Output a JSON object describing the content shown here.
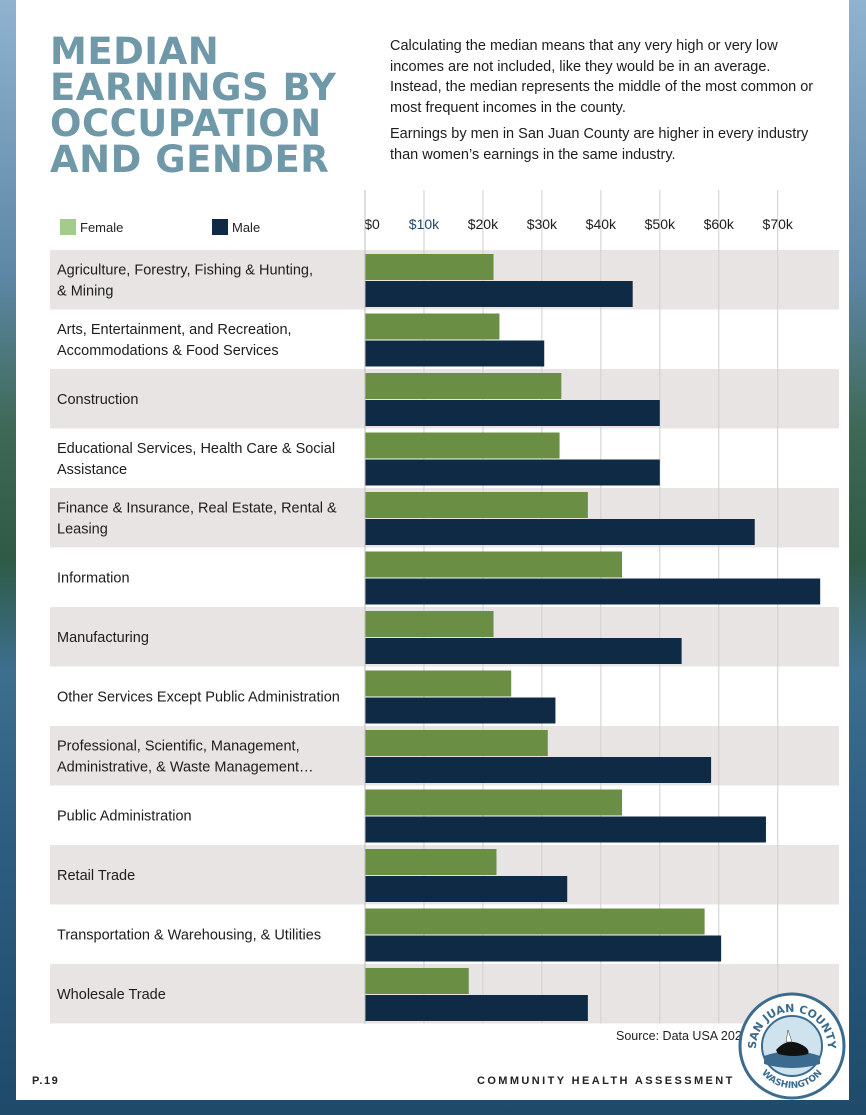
{
  "header": {
    "title": "MEDIAN EARNINGS BY OCCUPATION AND GENDER",
    "intro_p1": "Calculating the median means that any very high or very low incomes are not included, like they would be in an average. Instead, the median represents the middle of the most common or most frequent incomes in the county.",
    "intro_p2": "Earnings by men in San Juan County are higher in every industry than women’s earnings in the same industry."
  },
  "legend": {
    "female_label": "Female",
    "male_label": "Male"
  },
  "colors": {
    "female": "#6a8f44",
    "male": "#0f2a45",
    "band": "#e8e4e4",
    "title": "#6f98a8"
  },
  "chart_data": {
    "type": "bar",
    "orientation": "horizontal",
    "xlim": [
      0,
      77000
    ],
    "tick_values": [
      0,
      10000,
      20000,
      30000,
      40000,
      50000,
      60000,
      70000
    ],
    "tick_labels": [
      "$0",
      "$10k",
      "$20k",
      "$30k",
      "$40k",
      "$50k",
      "$60k",
      "$70k"
    ],
    "categories": [
      "Agriculture, Forestry, Fishing & Hunting, & Mining",
      "Arts, Entertainment, and Recreation, Accommodations & Food Services",
      "Construction",
      "Educational Services, Health Care & Social Assistance",
      "Finance & Insurance, Real Estate, Rental & Leasing",
      "Information",
      "Manufacturing",
      "Other Services Except Public Administration",
      "Professional, Scientific, Management, Administrative, & Waste Management…",
      "Public Administration",
      "Retail Trade",
      "Transportation & Warehousing, & Utilities",
      "Wholesale Trade"
    ],
    "category_lines": [
      [
        "Agriculture, Forestry, Fishing & Hunting,",
        "& Mining"
      ],
      [
        "Arts, Entertainment, and Recreation,",
        "Accommodations & Food Services"
      ],
      [
        "Construction"
      ],
      [
        "Educational Services, Health Care & Social",
        "Assistance"
      ],
      [
        "Finance & Insurance, Real Estate, Rental &",
        "Leasing"
      ],
      [
        "Information"
      ],
      [
        "Manufacturing"
      ],
      [
        "Other Services Except Public Administration"
      ],
      [
        "Professional, Scientific, Management,",
        "Administrative, & Waste Management…"
      ],
      [
        "Public Administration"
      ],
      [
        "Retail Trade"
      ],
      [
        "Transportation & Warehousing, & Utilities"
      ],
      [
        "Wholesale Trade"
      ]
    ],
    "series": [
      {
        "name": "Female",
        "values": [
          21800,
          22800,
          33300,
          33000,
          37800,
          43600,
          21800,
          24800,
          31000,
          43600,
          22300,
          57600,
          17600
        ]
      },
      {
        "name": "Male",
        "values": [
          45400,
          30400,
          50000,
          50000,
          66100,
          77200,
          53700,
          32300,
          58700,
          68000,
          34300,
          60400,
          37800
        ]
      }
    ]
  },
  "footer": {
    "source": "Source: Data USA 2021",
    "page_number": "P.19",
    "report_title": "COMMUNITY HEALTH ASSESSMENT",
    "seal_top_text": "SAN JUAN COUNTY",
    "seal_bottom_text": "WASHINGTON"
  }
}
